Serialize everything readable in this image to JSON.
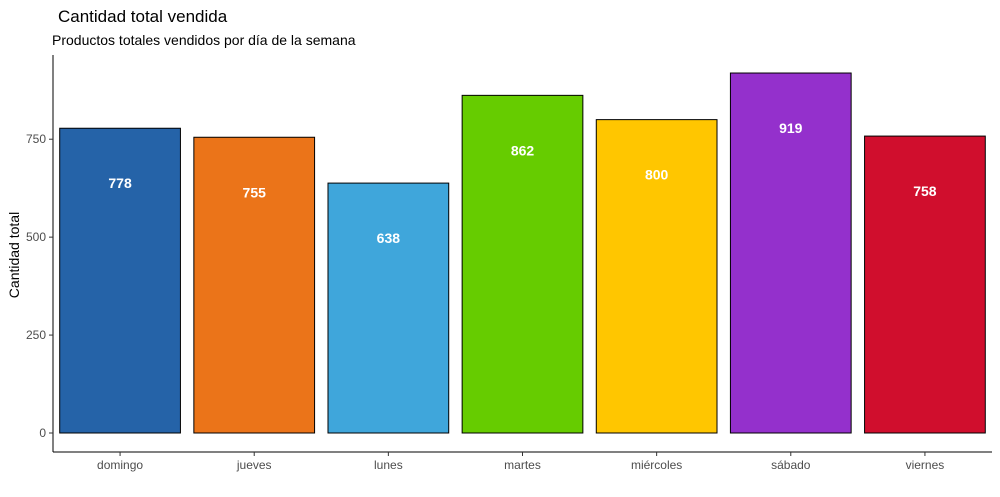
{
  "chart_data": {
    "type": "bar",
    "title": "Cantidad total vendida",
    "subtitle": "Productos totales vendidos por día de la semana",
    "xlabel": "",
    "ylabel": "Cantidad total",
    "categories": [
      "domingo",
      "jueves",
      "lunes",
      "martes",
      "miércoles",
      "sábado",
      "viernes"
    ],
    "values": [
      778,
      755,
      638,
      862,
      800,
      919,
      758
    ],
    "colors": [
      "#2563a8",
      "#eb7419",
      "#3fa6db",
      "#66cc00",
      "#ffc600",
      "#9430cc",
      "#d00e2d"
    ],
    "ylim": [
      0,
      965
    ],
    "yticks": [
      0,
      250,
      500,
      750
    ],
    "grid": false,
    "legend": "none"
  }
}
